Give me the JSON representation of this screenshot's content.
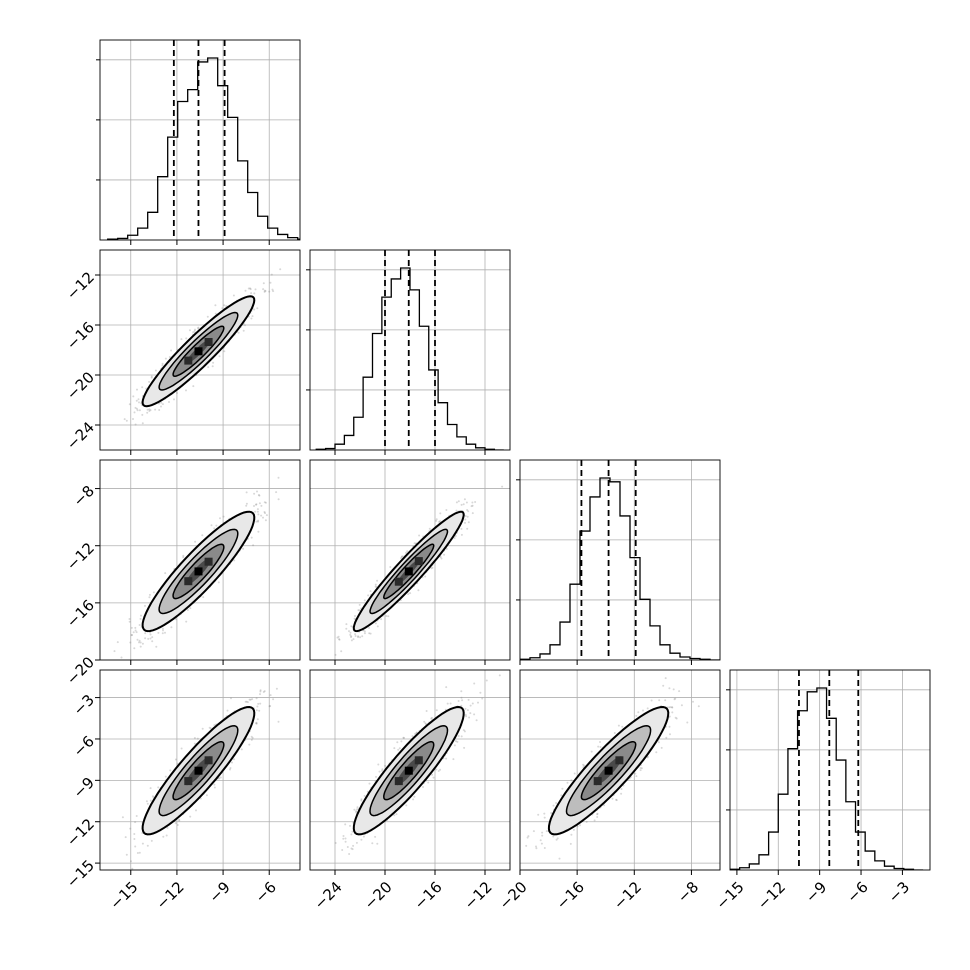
{
  "chart_data": {
    "type": "corner",
    "title": "",
    "n_params": 4,
    "parameter_labels": [
      "",
      "",
      "",
      ""
    ],
    "axis_ranges": [
      [
        -17,
        -4
      ],
      [
        -26,
        -10
      ],
      [
        -20,
        -6
      ],
      [
        -15.5,
        -1
      ]
    ],
    "x_ticks": [
      {
        "values": [
          -15,
          -12,
          -9,
          -6
        ],
        "labels": [
          "−15",
          "−12",
          "−9",
          "−6"
        ]
      },
      {
        "values": [
          -24,
          -20,
          -16,
          -12
        ],
        "labels": [
          "−24",
          "−20",
          "−16",
          "−12"
        ]
      },
      {
        "values": [
          -20,
          -16,
          -12,
          -8
        ],
        "labels": [
          "−20",
          "−16",
          "−12",
          "−8"
        ]
      },
      {
        "values": [
          -15,
          -12,
          -9,
          -6,
          -3
        ],
        "labels": [
          "−15",
          "−12",
          "−9",
          "−6",
          "−3"
        ]
      }
    ],
    "y_ticks": [
      null,
      {
        "values": [
          -24,
          -20,
          -16,
          -12
        ],
        "labels": [
          "−24",
          "−20",
          "−16",
          "−12"
        ]
      },
      {
        "values": [
          -20,
          -16,
          -12,
          -8
        ],
        "labels": [
          "−20",
          "−16",
          "−12",
          "−8"
        ]
      },
      {
        "values": [
          -15,
          -12,
          -9,
          -6,
          -3
        ],
        "labels": [
          "−15",
          "−12",
          "−9",
          "−6",
          "−3"
        ]
      }
    ],
    "quantiles": [
      [
        -12.2,
        -10.6,
        -8.9
      ],
      [
        -20.0,
        -18.1,
        -16.0
      ],
      [
        -15.7,
        -13.8,
        -11.9
      ],
      [
        -10.5,
        -8.3,
        -6.2
      ]
    ],
    "histograms": [
      {
        "bins": [
          -16.5,
          -3.5
        ],
        "counts": [
          1,
          2,
          6,
          15,
          35,
          80,
          130,
          175,
          190,
          225,
          230,
          195,
          155,
          100,
          60,
          30,
          15,
          7,
          3,
          1
        ]
      },
      {
        "bins": [
          -25.5,
          -10.5
        ],
        "counts": [
          1,
          2,
          8,
          20,
          45,
          100,
          160,
          210,
          235,
          250,
          220,
          170,
          110,
          65,
          35,
          18,
          8,
          3,
          1,
          0
        ]
      },
      {
        "bins": [
          -20,
          -6
        ],
        "counts": [
          1,
          3,
          8,
          20,
          50,
          100,
          170,
          215,
          240,
          235,
          190,
          135,
          80,
          45,
          20,
          9,
          4,
          2,
          1,
          0
        ]
      },
      {
        "bins": [
          -15.5,
          -1.5
        ],
        "counts": [
          1,
          3,
          8,
          20,
          50,
          100,
          160,
          210,
          235,
          240,
          200,
          145,
          90,
          50,
          25,
          12,
          5,
          2,
          1,
          0
        ]
      }
    ],
    "covariance_2d": {
      "means": [
        -10.6,
        -18.1,
        -13.8,
        -8.3
      ],
      "sigmas": [
        1.65,
        2.0,
        1.9,
        2.1
      ],
      "correlations": {
        "1_0": 0.93,
        "2_0": 0.9,
        "2_1": 0.95,
        "3_0": 0.9,
        "3_1": 0.9,
        "3_2": 0.9
      }
    },
    "grid": true,
    "legend": "none",
    "colors": {
      "line": "#000000",
      "points": "#7f7f7f",
      "grid": "#b0b0b0",
      "contour_fill_levels": [
        "#e8e8e8",
        "#bdbdbd",
        "#8a8a8a",
        "#4a4a4a"
      ]
    }
  }
}
